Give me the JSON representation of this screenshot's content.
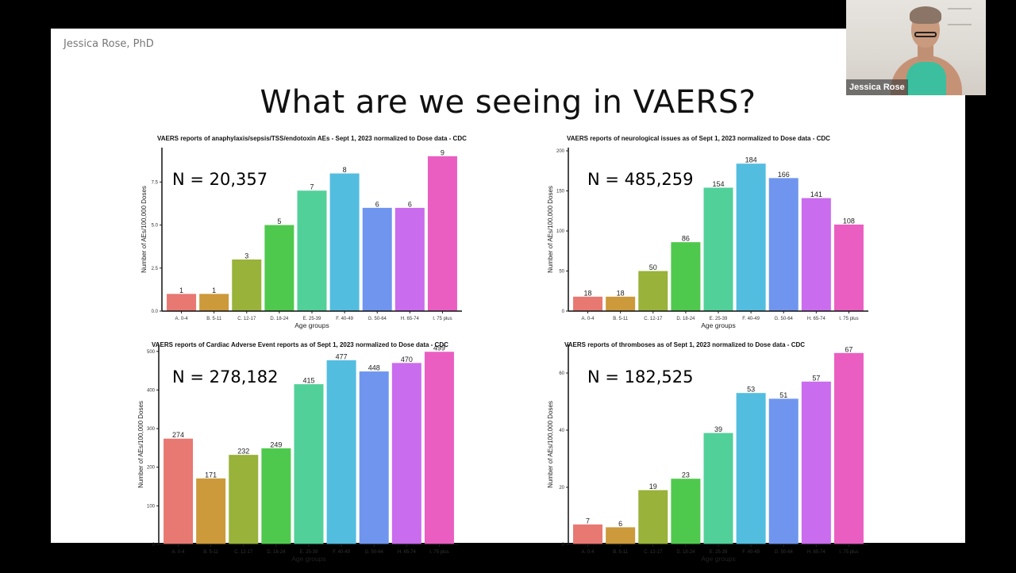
{
  "slide": {
    "author": "Jessica Rose, PhD",
    "title": "What are we seeing in VAERS?"
  },
  "webcam": {
    "participant_name": "Jessica Rose"
  },
  "chart_data": [
    {
      "type": "bar",
      "title": "VAERS reports of anaphylaxis/sepsis/TSS/endotoxin AEs - Sept 1, 2023 normalized to Dose data - CDC",
      "annotation": "N = 20,357",
      "xlabel": "Age groups",
      "ylabel": "Number of AEs/100,000 Doses",
      "categories": [
        "A. 0-4",
        "B. 5-11",
        "C. 12-17",
        "D. 18-24",
        "E. 25-39",
        "F. 40-49",
        "G. 50-64",
        "H. 65-74",
        "I. 75 plus"
      ],
      "values": [
        1,
        1,
        3,
        5,
        7,
        8,
        6,
        6,
        9
      ],
      "data_labels": [
        "1",
        "1",
        "3",
        "5",
        "7",
        "8",
        "6",
        "6",
        "9"
      ],
      "ylim": [
        0,
        9.5
      ],
      "yticks": [
        0,
        2.5,
        5,
        7.5
      ],
      "ytick_labels": [
        "0.0",
        "2.5",
        "5.0",
        "7.5"
      ],
      "colors": [
        "#e87872",
        "#cc9a3a",
        "#98b23a",
        "#4fc94d",
        "#52d09a",
        "#53bde0",
        "#6f95ee",
        "#ca6cee",
        "#ea5ec2"
      ],
      "grid": false,
      "legend": "none"
    },
    {
      "type": "bar",
      "title": "VAERS reports of neurological issues as of Sept 1, 2023 normalized to Dose data - CDC",
      "annotation": "N = 485,259",
      "xlabel": "Age groups",
      "ylabel": "Number of AEs/100,000 Doses",
      "categories": [
        "A. 0-4",
        "B. 5-11",
        "C. 12-17",
        "D. 18-24",
        "E. 25-39",
        "F. 40-49",
        "G. 50-64",
        "H. 65-74",
        "I. 75 plus"
      ],
      "values": [
        18,
        18,
        50,
        86,
        154,
        184,
        166,
        141,
        108
      ],
      "data_labels": [
        "18",
        "18",
        "50",
        "86",
        "154",
        "184",
        "166",
        "141",
        "108"
      ],
      "ylim": [
        0,
        204
      ],
      "yticks": [
        0,
        50,
        100,
        150,
        200
      ],
      "ytick_labels": [
        "0",
        "50",
        "100",
        "150",
        "200"
      ],
      "colors": [
        "#e87872",
        "#cc9a3a",
        "#98b23a",
        "#4fc94d",
        "#52d09a",
        "#53bde0",
        "#6f95ee",
        "#ca6cee",
        "#ea5ec2"
      ],
      "grid": false,
      "legend": "none"
    },
    {
      "type": "bar",
      "title": "VAERS reports of Cardiac Adverse Event reports as of Sept 1, 2023 normalized to Dose data - CDC",
      "annotation": "N = 278,182",
      "xlabel": "Age groups",
      "ylabel": "Number of AEs/100,000 Doses",
      "categories": [
        "A. 0-4",
        "B. 5-11",
        "C. 12-17",
        "D. 18-24",
        "E. 25-39",
        "F. 40-49",
        "G. 50-64",
        "H. 65-74",
        "I. 75 plus"
      ],
      "values": [
        274,
        171,
        232,
        249,
        415,
        477,
        448,
        470,
        499
      ],
      "data_labels": [
        "274",
        "171",
        "232",
        "249",
        "415",
        "477",
        "448",
        "470",
        "499"
      ],
      "ylim": [
        0,
        518
      ],
      "yticks": [
        0,
        100,
        200,
        300,
        400,
        500
      ],
      "ytick_labels": [
        "0",
        "100",
        "200",
        "300",
        "400",
        "500"
      ],
      "colors": [
        "#e87872",
        "#cc9a3a",
        "#98b23a",
        "#4fc94d",
        "#52d09a",
        "#53bde0",
        "#6f95ee",
        "#ca6cee",
        "#ea5ec2"
      ],
      "grid": false,
      "legend": "none"
    },
    {
      "type": "bar",
      "title": "VAERS reports of thromboses as of Sept 1, 2023 normalized to Dose data - CDC",
      "annotation": "N = 182,525",
      "xlabel": "Age groups",
      "ylabel": "Number of AEs/100,000 Doses",
      "categories": [
        "A. 0-4",
        "B. 5-11",
        "C. 12-17",
        "D. 18-24",
        "E. 25-39",
        "F. 40-49",
        "G. 50-64",
        "H. 65-74",
        "I. 75 plus"
      ],
      "values": [
        7,
        6,
        19,
        23,
        39,
        53,
        51,
        57,
        67
      ],
      "data_labels": [
        "7",
        "6",
        "19",
        "23",
        "39",
        "53",
        "51",
        "57",
        "67"
      ],
      "ylim": [
        0,
        70
      ],
      "yticks": [
        0,
        20,
        40,
        60
      ],
      "ytick_labels": [
        "0",
        "20",
        "40",
        "60"
      ],
      "colors": [
        "#e87872",
        "#cc9a3a",
        "#98b23a",
        "#4fc94d",
        "#52d09a",
        "#53bde0",
        "#6f95ee",
        "#ca6cee",
        "#ea5ec2"
      ],
      "grid": false,
      "legend": "none"
    }
  ]
}
